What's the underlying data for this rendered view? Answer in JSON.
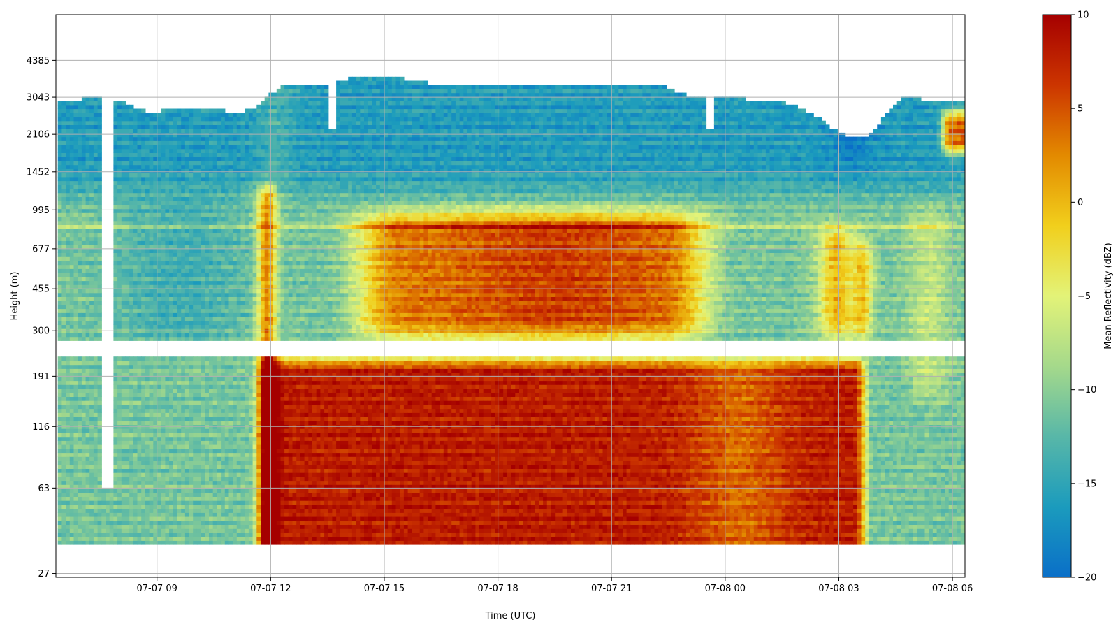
{
  "chart_data": {
    "type": "heatmap",
    "title": "",
    "xlabel": "Time (UTC)",
    "ylabel": "Height (m)",
    "y_scale": "log",
    "grid": true,
    "x_range": [
      "07-07 06:20",
      "08-07 06:10"
    ],
    "y_range": [
      27,
      6900
    ],
    "x_tick_labels": [
      "07-07 09",
      "07-07 12",
      "07-07 15",
      "07-07 18",
      "07-07 21",
      "07-08 00",
      "07-08 03",
      "07-08 06"
    ],
    "x_tick_hours": [
      9,
      12,
      15,
      18,
      21,
      24,
      27,
      30
    ],
    "y_tick_labels": [
      "27",
      "63",
      "116",
      "191",
      "300",
      "455",
      "677",
      "995",
      "1452",
      "2106",
      "3043",
      "4385"
    ],
    "y_tick_values": [
      27,
      63,
      116,
      191,
      300,
      455,
      677,
      995,
      1452,
      2106,
      3043,
      4385
    ],
    "colorbar": {
      "label": "Mean Reflectivity (dBZ)",
      "min": -20,
      "max": 10,
      "tick_labels": [
        "10",
        "5",
        "0",
        "−5",
        "−10",
        "−15",
        "−20"
      ],
      "tick_values": [
        10,
        5,
        0,
        -5,
        -10,
        -15,
        -20
      ],
      "colormap": [
        "#0a6fc8",
        "#1b9bbd",
        "#58b7a8",
        "#a5d98b",
        "#e3f378",
        "#f1cf1c",
        "#e38a00",
        "#cc3500",
        "#a50000"
      ]
    },
    "regions": [
      {
        "name": "clear-air-aloft",
        "hours": [
          6.3,
          30.3
        ],
        "height_m": [
          1452,
          3043
        ],
        "dbz": -15
      },
      {
        "name": "cloud-top-band",
        "hours": [
          6.3,
          30.3
        ],
        "height_m": [
          2106,
          3500
        ],
        "dbz": -16
      },
      {
        "name": "melting-layer-band",
        "height_m": 850,
        "dbz": -4
      },
      {
        "name": "convective-core-upper",
        "hours": [
          14.5,
          23.0
        ],
        "height_m": [
          300,
          950
        ],
        "dbz": 4
      },
      {
        "name": "convective-core-lower",
        "hours": [
          11.8,
          27.6
        ],
        "height_m": [
          36,
          230
        ],
        "dbz": 9
      },
      {
        "name": "early-convective-cell",
        "hours": [
          11.6,
          12.1
        ],
        "height_m": [
          36,
          1300
        ],
        "dbz": 7
      },
      {
        "name": "late-cell",
        "hours": [
          26.6,
          27.7
        ],
        "height_m": [
          300,
          700
        ],
        "dbz": 3
      },
      {
        "name": "upper-echo-late",
        "hours": [
          29.6,
          30.3
        ],
        "height_m": [
          1700,
          2600
        ],
        "dbz": 6
      }
    ],
    "data_gaps": [
      {
        "hours": [
          7.55,
          7.8
        ],
        "height_m": [
          63,
          3043
        ]
      },
      {
        "hours": [
          13.55,
          13.75
        ],
        "height_m": [
          2200,
          3800
        ]
      },
      {
        "hours": [
          23.5,
          23.75
        ],
        "height_m": [
          2200,
          3200
        ]
      },
      {
        "hours": [
          6.3,
          30.3
        ],
        "height_m": [
          235,
          268
        ]
      }
    ]
  }
}
